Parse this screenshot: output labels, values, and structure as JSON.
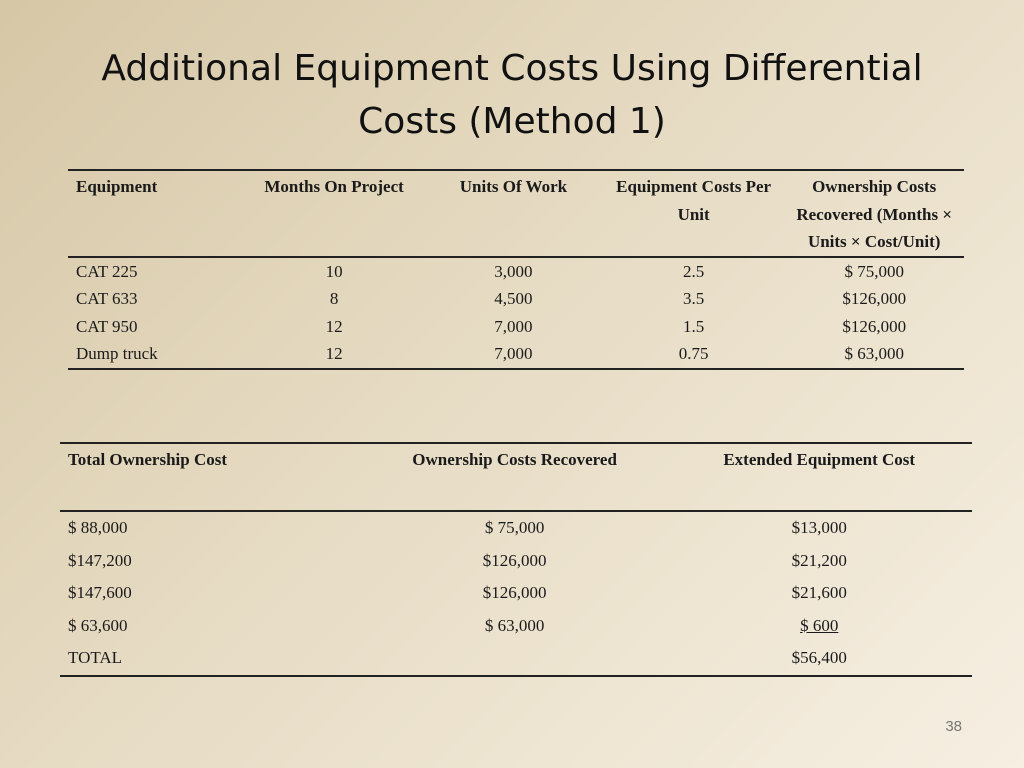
{
  "slide": {
    "title_line1": "Additional Equipment Costs Using Differential",
    "title_line2": "Costs (Method 1)",
    "page_number": "38"
  },
  "table1": {
    "headers": [
      "Equipment",
      "Months On Project",
      "Units Of Work",
      "Equipment Costs Per Unit",
      "Ownership Costs Recovered (Months × Units × Cost/Unit)"
    ],
    "rows": [
      [
        "CAT 225",
        "10",
        "3,000",
        "2.5",
        "$ 75,000"
      ],
      [
        "CAT 633",
        "8",
        "4,500",
        "3.5",
        "$126,000"
      ],
      [
        "CAT 950",
        "12",
        "7,000",
        "1.5",
        "$126,000"
      ],
      [
        "Dump truck",
        "12",
        "7,000",
        "0.75",
        "$ 63,000"
      ]
    ]
  },
  "table2": {
    "headers": [
      "Total Ownership Cost",
      "Ownership Costs Recovered",
      "Extended Equipment Cost"
    ],
    "rows": [
      [
        "$ 88,000",
        "$ 75,000",
        "$13,000"
      ],
      [
        "$147,200",
        "$126,000",
        "$21,200"
      ],
      [
        "$147,600",
        "$126,000",
        "$21,600"
      ],
      [
        "$ 63,600",
        "$ 63,000",
        "$ 600"
      ],
      [
        "TOTAL",
        "",
        "$56,400"
      ]
    ]
  }
}
